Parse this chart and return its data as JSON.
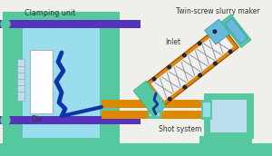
{
  "bg_color": "#f0f0eb",
  "green": "#55c8a0",
  "green_dark": "#3aab85",
  "blue_light": "#99ddee",
  "blue_mid": "#66bbdd",
  "blue_pale": "#bbddee",
  "blue_dark": "#1133aa",
  "purple": "#5533bb",
  "orange": "#dd8800",
  "orange_light": "#eeaa44",
  "white": "#ffffff",
  "gray_line": "#999999",
  "text_color": "#333333",
  "title": "Clamping unit",
  "label_die": "Die",
  "label_shot": "Shot system",
  "label_twin": "Twin-screw slurry maker",
  "label_inlet": "Inlet"
}
